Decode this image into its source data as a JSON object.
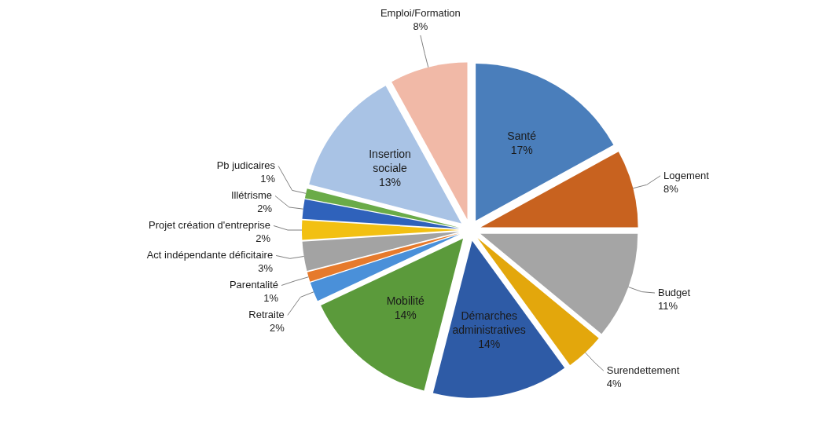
{
  "chart_data": {
    "type": "pie",
    "categories": [
      "Santé",
      "Logement",
      "Budget",
      "Surendettement",
      "Démarches administratives",
      "Mobilité",
      "Retraite",
      "Parentalité",
      "Act indépendante déficitaire",
      "Projet création d'entreprise",
      "Illétrisme",
      "Pb judicaires",
      "Insertion sociale",
      "Emploi/Formation"
    ],
    "values": [
      17,
      8,
      11,
      4,
      14,
      14,
      2,
      1,
      3,
      2,
      2,
      1,
      13,
      8
    ],
    "value_labels": [
      "17%",
      "8%",
      "11%",
      "4%",
      "14%",
      "14%",
      "2%",
      "1%",
      "3%",
      "2%",
      "2%",
      "1%",
      "13%",
      "8%"
    ],
    "colors": [
      "#4a7ebb",
      "#c8621f",
      "#a5a5a5",
      "#e3a70c",
      "#2e5ba6",
      "#5b9a3b",
      "#4a90d9",
      "#e67a2c",
      "#a3a3a3",
      "#f2c012",
      "#2f62bb",
      "#6aab48",
      "#a9c3e5",
      "#f1b9a7"
    ]
  }
}
